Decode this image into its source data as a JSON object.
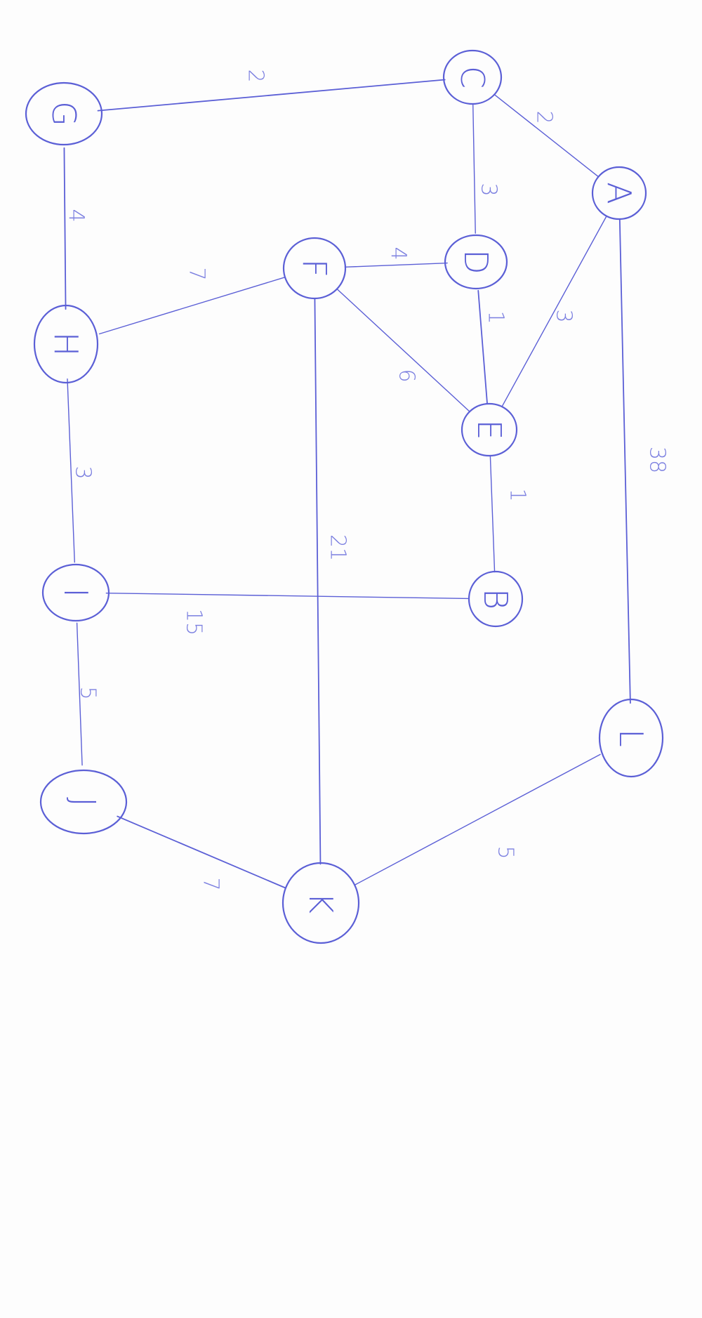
{
  "colors": {
    "ink": "#5b5fd6",
    "ink_light": "#7b7fe0",
    "paper": "#fdfdfd"
  },
  "orientation": "rotated-90-clockwise",
  "graph": {
    "nodes": [
      {
        "id": "A",
        "label": "A"
      },
      {
        "id": "B",
        "label": "B"
      },
      {
        "id": "C",
        "label": "C"
      },
      {
        "id": "D",
        "label": "D"
      },
      {
        "id": "E",
        "label": "E"
      },
      {
        "id": "F",
        "label": "F"
      },
      {
        "id": "G",
        "label": "G"
      },
      {
        "id": "H",
        "label": "H"
      },
      {
        "id": "I",
        "label": "I"
      },
      {
        "id": "J",
        "label": "J"
      },
      {
        "id": "K",
        "label": "K"
      },
      {
        "id": "L",
        "label": "L"
      }
    ],
    "edges": [
      {
        "from": "G",
        "to": "C",
        "weight": "2"
      },
      {
        "from": "C",
        "to": "A",
        "weight": "2"
      },
      {
        "from": "C",
        "to": "D",
        "weight": "3"
      },
      {
        "from": "G",
        "to": "H",
        "weight": "4"
      },
      {
        "from": "F",
        "to": "D",
        "weight": "4"
      },
      {
        "from": "H",
        "to": "F",
        "weight": "7"
      },
      {
        "from": "D",
        "to": "E",
        "weight": "1"
      },
      {
        "from": "A",
        "to": "E",
        "weight": "3"
      },
      {
        "from": "F",
        "to": "E",
        "weight": "6"
      },
      {
        "from": "A",
        "to": "L",
        "weight": "38"
      },
      {
        "from": "H",
        "to": "I",
        "weight": "3"
      },
      {
        "from": "E",
        "to": "B",
        "weight": "1"
      },
      {
        "from": "F",
        "to": "K",
        "weight": "21"
      },
      {
        "from": "I",
        "to": "B",
        "weight": "15"
      },
      {
        "from": "I",
        "to": "J",
        "weight": "5"
      },
      {
        "from": "J",
        "to": "K",
        "weight": "7"
      },
      {
        "from": "K",
        "to": "L",
        "weight": "5"
      }
    ]
  }
}
